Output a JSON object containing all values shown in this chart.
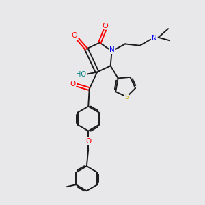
{
  "bg_color": "#e8e8ea",
  "bond_color": "#1a1a1a",
  "atom_colors": {
    "O": "#ff0000",
    "N": "#0000ee",
    "S": "#ccaa00",
    "H": "#008080",
    "C": "#1a1a1a"
  },
  "lw": 1.4,
  "fontsize": 7.5
}
